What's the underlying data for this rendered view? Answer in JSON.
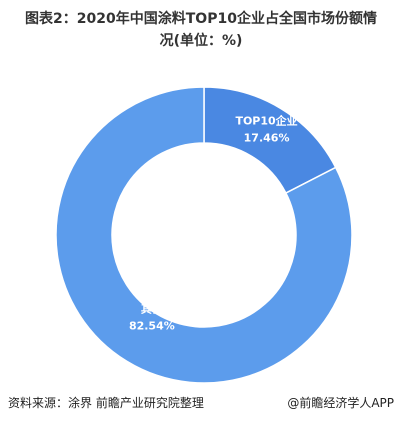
{
  "chart_data": {
    "type": "pie",
    "title": "图表2：2020年中国涂料TOP10企业占全国市场份额情况(单位：%)",
    "categories": [
      "TOP10企业",
      "其他"
    ],
    "values": [
      17.46,
      82.54
    ],
    "value_labels": [
      "17.46%",
      "82.54%"
    ],
    "colors": [
      "#4a88e2",
      "#5c9cec"
    ],
    "donut": true,
    "source": "资料来源：涂界 前瞻产业研究院整理",
    "credit": "@前瞻经济学人APP"
  }
}
